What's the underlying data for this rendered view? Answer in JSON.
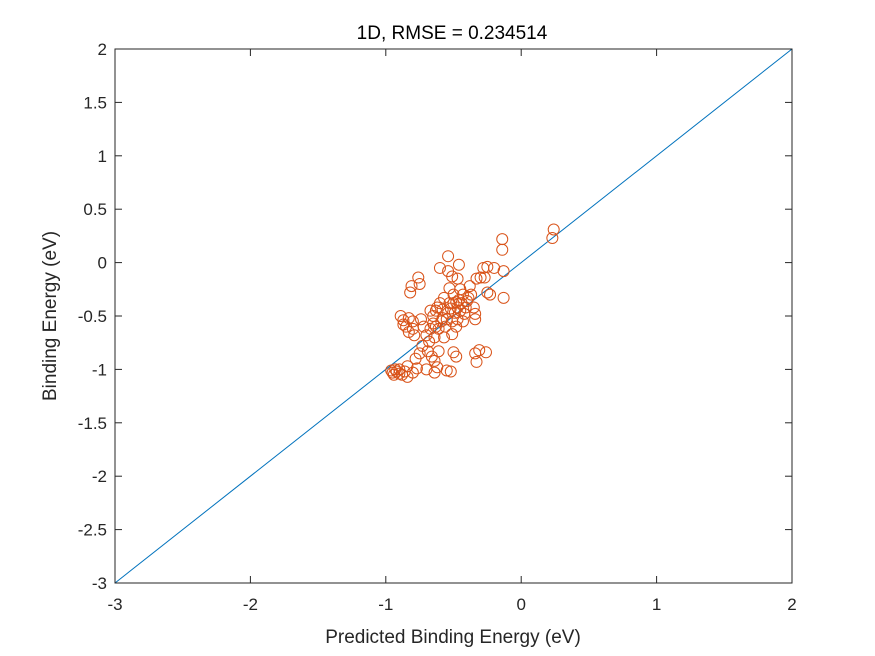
{
  "chart_data": {
    "type": "scatter",
    "title": "1D, RMSE = 0.234514",
    "xlabel": "Predicted Binding Energy (eV)",
    "ylabel": "Binding Energy (eV)",
    "xlim": [
      -3,
      2
    ],
    "ylim": [
      -3,
      2
    ],
    "xticks": [
      -3,
      -2,
      -1,
      0,
      1,
      2
    ],
    "xtick_labels": [
      "-3",
      "-2",
      "-1",
      "0",
      "1",
      "2"
    ],
    "yticks": [
      -3,
      -2.5,
      -2,
      -1.5,
      -1,
      -0.5,
      0,
      0.5,
      1,
      1.5,
      2
    ],
    "ytick_labels": [
      "-3",
      "-2.5",
      "-2",
      "-1.5",
      "-1",
      "-0.5",
      "0",
      "0.5",
      "1",
      "1.5",
      "2"
    ],
    "grid": false,
    "reference_line": {
      "x": [
        -3,
        2
      ],
      "y": [
        -3,
        2
      ],
      "color": "#0072BD"
    },
    "series": [
      {
        "marker": "open-circle",
        "color": "#D95319",
        "points": [
          [
            0.23,
            0.23
          ],
          [
            0.24,
            0.31
          ],
          [
            -0.14,
            0.22
          ],
          [
            -0.14,
            0.12
          ],
          [
            -0.13,
            -0.08
          ],
          [
            -0.13,
            -0.33
          ],
          [
            -0.2,
            -0.05
          ],
          [
            -0.25,
            -0.04
          ],
          [
            -0.28,
            -0.05
          ],
          [
            -0.27,
            -0.14
          ],
          [
            -0.3,
            -0.14
          ],
          [
            -0.33,
            -0.15
          ],
          [
            -0.23,
            -0.3
          ],
          [
            -0.25,
            -0.28
          ],
          [
            -0.26,
            -0.84
          ],
          [
            -0.31,
            -0.82
          ],
          [
            -0.34,
            -0.85
          ],
          [
            -0.33,
            -0.93
          ],
          [
            -0.34,
            -0.53
          ],
          [
            -0.34,
            -0.48
          ],
          [
            -0.35,
            -0.42
          ],
          [
            -0.37,
            -0.3
          ],
          [
            -0.38,
            -0.22
          ],
          [
            -0.39,
            -0.33
          ],
          [
            -0.4,
            -0.36
          ],
          [
            -0.41,
            -0.42
          ],
          [
            -0.42,
            -0.48
          ],
          [
            -0.43,
            -0.55
          ],
          [
            -0.43,
            -0.3
          ],
          [
            -0.44,
            -0.38
          ],
          [
            -0.45,
            -0.45
          ],
          [
            -0.45,
            -0.25
          ],
          [
            -0.46,
            -0.35
          ],
          [
            -0.46,
            -0.02
          ],
          [
            -0.47,
            -0.42
          ],
          [
            -0.47,
            -0.53
          ],
          [
            -0.47,
            -0.15
          ],
          [
            -0.48,
            -0.37
          ],
          [
            -0.48,
            -0.6
          ],
          [
            -0.48,
            -0.88
          ],
          [
            -0.49,
            -0.47
          ],
          [
            -0.5,
            -0.38
          ],
          [
            -0.5,
            -0.3
          ],
          [
            -0.5,
            -0.84
          ],
          [
            -0.51,
            -0.13
          ],
          [
            -0.51,
            -0.55
          ],
          [
            -0.51,
            -0.67
          ],
          [
            -0.52,
            -0.43
          ],
          [
            -0.52,
            -1.02
          ],
          [
            -0.53,
            -0.38
          ],
          [
            -0.53,
            -0.24
          ],
          [
            -0.54,
            -0.47
          ],
          [
            -0.54,
            -0.08
          ],
          [
            -0.54,
            0.06
          ],
          [
            -0.55,
            -0.53
          ],
          [
            -0.55,
            -1.01
          ],
          [
            -0.56,
            -0.6
          ],
          [
            -0.57,
            -0.33
          ],
          [
            -0.57,
            -0.7
          ],
          [
            -0.58,
            -0.44
          ],
          [
            -0.58,
            -0.52
          ],
          [
            -0.59,
            -0.55
          ],
          [
            -0.6,
            -0.38
          ],
          [
            -0.6,
            -0.05
          ],
          [
            -0.61,
            -0.62
          ],
          [
            -0.61,
            -0.83
          ],
          [
            -0.62,
            -0.98
          ],
          [
            -0.62,
            -0.42
          ],
          [
            -0.63,
            -0.45
          ],
          [
            -0.63,
            -0.6
          ],
          [
            -0.64,
            -0.7
          ],
          [
            -0.64,
            -0.92
          ],
          [
            -0.64,
            -1.03
          ],
          [
            -0.65,
            -0.5
          ],
          [
            -0.65,
            -0.57
          ],
          [
            -0.66,
            -0.88
          ],
          [
            -0.67,
            -0.62
          ],
          [
            -0.67,
            -0.45
          ],
          [
            -0.68,
            -0.74
          ],
          [
            -0.69,
            -0.83
          ],
          [
            -0.7,
            -1.0
          ],
          [
            -0.7,
            -0.68
          ],
          [
            -0.72,
            -0.6
          ],
          [
            -0.73,
            -0.78
          ],
          [
            -0.74,
            -0.53
          ],
          [
            -0.75,
            -0.85
          ],
          [
            -0.75,
            -0.2
          ],
          [
            -0.76,
            -0.14
          ],
          [
            -0.77,
            -0.99
          ],
          [
            -0.78,
            -0.9
          ],
          [
            -0.79,
            -0.68
          ],
          [
            -0.8,
            -0.55
          ],
          [
            -0.8,
            -0.62
          ],
          [
            -0.8,
            -1.03
          ],
          [
            -0.81,
            -0.22
          ],
          [
            -0.82,
            -0.28
          ],
          [
            -0.83,
            -0.52
          ],
          [
            -0.83,
            -0.65
          ],
          [
            -0.84,
            -0.97
          ],
          [
            -0.84,
            -1.07
          ],
          [
            -0.85,
            -0.6
          ],
          [
            -0.86,
            -1.02
          ],
          [
            -0.87,
            -0.58
          ],
          [
            -0.87,
            -0.54
          ],
          [
            -0.88,
            -1.05
          ],
          [
            -0.89,
            -0.5
          ],
          [
            -0.9,
            -1.0
          ],
          [
            -0.9,
            -1.04
          ],
          [
            -0.92,
            -1.02
          ],
          [
            -0.93,
            -1.0
          ],
          [
            -0.94,
            -1.05
          ],
          [
            -0.95,
            -1.03
          ],
          [
            -0.96,
            -1.01
          ]
        ]
      }
    ]
  }
}
